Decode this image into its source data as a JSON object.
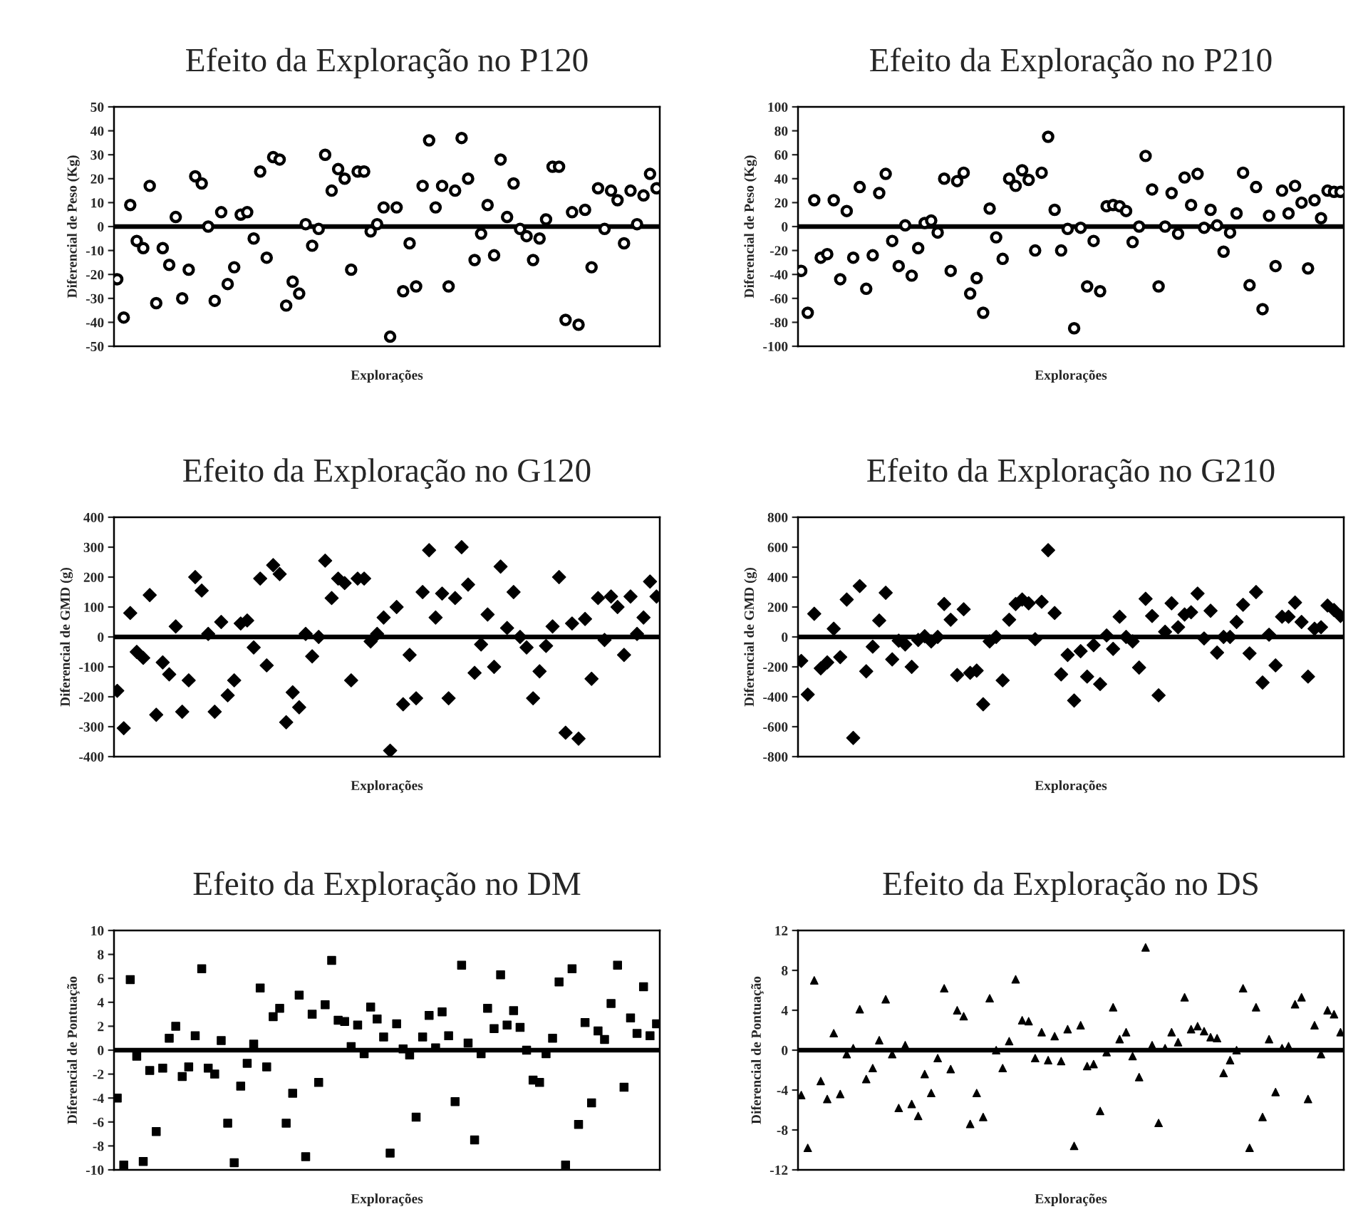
{
  "chart_data": [
    {
      "type": "scatter",
      "title": "Efeito da Exploração no P120",
      "xlabel": "Explorações",
      "ylabel": "Diferencial de Peso (Kg)",
      "marker": "circle",
      "color": "#000000",
      "ylim": [
        -50,
        50
      ],
      "yticks": [
        -50,
        -40,
        -30,
        -20,
        -10,
        0,
        10,
        20,
        30,
        40,
        50
      ],
      "ref_lines": [
        {
          "axis": "y",
          "value": 0,
          "color": "#000000"
        }
      ],
      "grid": false,
      "categories": [
        null,
        null,
        null,
        null,
        null,
        null,
        null,
        null,
        null,
        null,
        null,
        null,
        null,
        null,
        null,
        null,
        null,
        null,
        null,
        null,
        null,
        null,
        null,
        null,
        null,
        null,
        null,
        null,
        null,
        null,
        null,
        null,
        null,
        null,
        null,
        null,
        null,
        null,
        null,
        null,
        null,
        null,
        null,
        null,
        null,
        null,
        null,
        null,
        null,
        null,
        null,
        null,
        null,
        null,
        null,
        null,
        null,
        null,
        null,
        null,
        null,
        null,
        null,
        null,
        null,
        null,
        null,
        null,
        null,
        null,
        null,
        null,
        null,
        null,
        null,
        null,
        null,
        null,
        null,
        null,
        null,
        null,
        null,
        null
      ],
      "values": [
        -22,
        -38,
        9,
        -6,
        -9,
        17,
        -32,
        -9,
        -16,
        4,
        -30,
        -18,
        21,
        18,
        0,
        -31,
        6,
        -24,
        -17,
        5,
        6,
        -5,
        23,
        -13,
        29,
        28,
        -33,
        -23,
        -28,
        1,
        -8,
        -1,
        30,
        15,
        24,
        20,
        -18,
        23,
        23,
        -2,
        1,
        8,
        -46,
        8,
        -27,
        -7,
        -25,
        17,
        36,
        8,
        17,
        -25,
        15,
        37,
        20,
        -14,
        -3,
        9,
        -12,
        28,
        4,
        18,
        -1,
        -4,
        -14,
        -5,
        3,
        25,
        25,
        -39,
        6,
        -41,
        7,
        -17,
        16,
        -1,
        15,
        11,
        -7,
        15,
        1,
        13,
        22,
        16
      ]
    },
    {
      "type": "scatter",
      "title": "Efeito da Exploração no P210",
      "xlabel": "Explorações",
      "ylabel": "Diferencial de Peso (Kg)",
      "marker": "circle",
      "color": "#000000",
      "ylim": [
        -100,
        100
      ],
      "yticks": [
        -100,
        -80,
        -60,
        -40,
        -20,
        0,
        20,
        40,
        60,
        80,
        100
      ],
      "ref_lines": [
        {
          "axis": "y",
          "value": 0,
          "color": "#000000"
        }
      ],
      "grid": false,
      "categories": [
        null,
        null,
        null,
        null,
        null,
        null,
        null,
        null,
        null,
        null,
        null,
        null,
        null,
        null,
        null,
        null,
        null,
        null,
        null,
        null,
        null,
        null,
        null,
        null,
        null,
        null,
        null,
        null,
        null,
        null,
        null,
        null,
        null,
        null,
        null,
        null,
        null,
        null,
        null,
        null,
        null,
        null,
        null,
        null,
        null,
        null,
        null,
        null,
        null,
        null,
        null,
        null,
        null,
        null,
        null,
        null,
        null,
        null,
        null,
        null,
        null,
        null,
        null,
        null,
        null,
        null,
        null,
        null,
        null,
        null,
        null,
        null,
        null,
        null,
        null,
        null,
        null,
        null,
        null,
        null,
        null,
        null,
        null,
        null
      ],
      "values": [
        -37,
        -72,
        22,
        -26,
        -23,
        22,
        -44,
        13,
        -26,
        33,
        -52,
        -24,
        28,
        44,
        -12,
        -33,
        1,
        -41,
        -18,
        3,
        5,
        -5,
        40,
        -37,
        38,
        45,
        -56,
        -43,
        -72,
        15,
        -9,
        -27,
        40,
        34,
        47,
        39,
        -20,
        45,
        75,
        14,
        -20,
        -2,
        -85,
        -1,
        -50,
        -12,
        -54,
        17,
        18,
        17,
        13,
        -13,
        0,
        59,
        31,
        -50,
        0,
        28,
        -6,
        41,
        18,
        44,
        -1,
        14,
        1,
        -21,
        -5,
        11,
        45,
        -49,
        33,
        -69,
        9,
        -33,
        30,
        11,
        34,
        20,
        -35,
        22,
        7,
        30,
        29,
        29
      ]
    },
    {
      "type": "scatter",
      "title": "Efeito da Exploração no G120",
      "xlabel": "Explorações",
      "ylabel": "Diferencial de GMD (g)",
      "marker": "diamond",
      "color": "#000000",
      "ylim": [
        -400,
        400
      ],
      "yticks": [
        -400,
        -300,
        -200,
        -100,
        0,
        100,
        200,
        300,
        400
      ],
      "ref_lines": [
        {
          "axis": "y",
          "value": 0,
          "color": "#000000"
        }
      ],
      "grid": false,
      "categories": [
        null,
        null,
        null,
        null,
        null,
        null,
        null,
        null,
        null,
        null,
        null,
        null,
        null,
        null,
        null,
        null,
        null,
        null,
        null,
        null,
        null,
        null,
        null,
        null,
        null,
        null,
        null,
        null,
        null,
        null,
        null,
        null,
        null,
        null,
        null,
        null,
        null,
        null,
        null,
        null,
        null,
        null,
        null,
        null,
        null,
        null,
        null,
        null,
        null,
        null,
        null,
        null,
        null,
        null,
        null,
        null,
        null,
        null,
        null,
        null,
        null,
        null,
        null,
        null,
        null,
        null,
        null,
        null,
        null,
        null,
        null,
        null,
        null,
        null,
        null,
        null,
        null,
        null,
        null,
        null,
        null,
        null,
        null,
        null
      ],
      "values": [
        -180,
        -305,
        80,
        -50,
        -70,
        140,
        -260,
        -85,
        -125,
        35,
        -250,
        -145,
        200,
        155,
        10,
        -250,
        50,
        -195,
        -145,
        45,
        55,
        -35,
        195,
        -95,
        240,
        210,
        -285,
        -185,
        -235,
        10,
        -65,
        0,
        255,
        130,
        195,
        180,
        -145,
        195,
        195,
        -15,
        10,
        65,
        -380,
        100,
        -225,
        -60,
        -205,
        150,
        290,
        65,
        145,
        -205,
        130,
        300,
        175,
        -120,
        -25,
        75,
        -100,
        235,
        30,
        150,
        0,
        -35,
        -205,
        -115,
        -30,
        35,
        200,
        -320,
        45,
        -340,
        60,
        -140,
        130,
        -10,
        135,
        100,
        -60,
        135,
        10,
        65,
        185,
        135
      ]
    },
    {
      "type": "scatter",
      "title": "Efeito da Exploração no G210",
      "xlabel": "Explorações",
      "ylabel": "Diferencial de GMD (g)",
      "marker": "diamond",
      "color": "#000000",
      "ylim": [
        -800,
        800
      ],
      "yticks": [
        -800,
        -600,
        -400,
        -200,
        0,
        200,
        400,
        600,
        800
      ],
      "ref_lines": [
        {
          "axis": "y",
          "value": 0,
          "color": "#000000"
        }
      ],
      "grid": false,
      "categories": [
        null,
        null,
        null,
        null,
        null,
        null,
        null,
        null,
        null,
        null,
        null,
        null,
        null,
        null,
        null,
        null,
        null,
        null,
        null,
        null,
        null,
        null,
        null,
        null,
        null,
        null,
        null,
        null,
        null,
        null,
        null,
        null,
        null,
        null,
        null,
        null,
        null,
        null,
        null,
        null,
        null,
        null,
        null,
        null,
        null,
        null,
        null,
        null,
        null,
        null,
        null,
        null,
        null,
        null,
        null,
        null,
        null,
        null,
        null,
        null,
        null,
        null,
        null,
        null,
        null,
        null,
        null,
        null,
        null,
        null,
        null,
        null,
        null,
        null,
        null,
        null,
        null,
        null,
        null,
        null,
        null,
        null,
        null,
        null
      ],
      "values": [
        -160,
        -385,
        155,
        -210,
        -170,
        55,
        -135,
        250,
        -675,
        340,
        -230,
        -65,
        110,
        295,
        -150,
        -25,
        -50,
        -200,
        -20,
        5,
        -30,
        0,
        220,
        115,
        -255,
        185,
        -240,
        -225,
        -450,
        -30,
        0,
        -290,
        115,
        220,
        250,
        225,
        -15,
        235,
        580,
        160,
        -250,
        -120,
        -425,
        -95,
        -265,
        -55,
        -315,
        10,
        -80,
        135,
        0,
        -30,
        -205,
        255,
        140,
        -390,
        35,
        225,
        65,
        150,
        165,
        290,
        -10,
        175,
        -105,
        0,
        0,
        100,
        215,
        -110,
        300,
        -305,
        15,
        -190,
        135,
        135,
        230,
        100,
        -265,
        55,
        65,
        210,
        180,
        140
      ]
    },
    {
      "type": "scatter",
      "title": "Efeito da Exploração no DM",
      "xlabel": "Explorações",
      "ylabel": "Diferencial de Pontuação",
      "marker": "square",
      "color": "#000000",
      "ylim": [
        -10,
        10
      ],
      "yticks": [
        -10,
        -8,
        -6,
        -4,
        -2,
        0,
        2,
        4,
        6,
        8,
        10
      ],
      "ref_lines": [
        {
          "axis": "y",
          "value": 0,
          "color": "#000000"
        }
      ],
      "grid": false,
      "categories": [
        null,
        null,
        null,
        null,
        null,
        null,
        null,
        null,
        null,
        null,
        null,
        null,
        null,
        null,
        null,
        null,
        null,
        null,
        null,
        null,
        null,
        null,
        null,
        null,
        null,
        null,
        null,
        null,
        null,
        null,
        null,
        null,
        null,
        null,
        null,
        null,
        null,
        null,
        null,
        null,
        null,
        null,
        null,
        null,
        null,
        null,
        null,
        null,
        null,
        null,
        null,
        null,
        null,
        null,
        null,
        null,
        null,
        null,
        null,
        null,
        null,
        null,
        null,
        null,
        null,
        null,
        null,
        null,
        null,
        null,
        null,
        null,
        null,
        null,
        null,
        null,
        null,
        null,
        null,
        null,
        null,
        null,
        null,
        null
      ],
      "values": [
        -4,
        -9.6,
        5.9,
        -0.5,
        -9.3,
        -1.7,
        -6.8,
        -1.5,
        1,
        2,
        -2.2,
        -1.4,
        1.2,
        6.8,
        -1.5,
        -2,
        0.8,
        -6.1,
        -9.4,
        -3,
        -1.1,
        0.5,
        5.2,
        -1.4,
        2.8,
        3.5,
        -6.1,
        -3.6,
        4.6,
        -8.9,
        3,
        -2.7,
        3.8,
        7.5,
        2.5,
        2.4,
        0.3,
        2.1,
        -0.3,
        3.6,
        2.6,
        1.1,
        -8.6,
        2.2,
        0.1,
        -0.4,
        -5.6,
        1.1,
        2.9,
        0.2,
        3.2,
        1.2,
        -4.3,
        7.1,
        0.6,
        -7.5,
        -0.3,
        3.5,
        1.8,
        6.3,
        2.1,
        3.3,
        1.9,
        0,
        -2.5,
        -2.7,
        -0.3,
        1,
        5.7,
        -9.6,
        6.8,
        -6.2,
        2.3,
        -4.4,
        1.6,
        0.9,
        3.9,
        7.1,
        -3.1,
        2.7,
        1.4,
        5.3,
        1.2,
        2.2
      ]
    },
    {
      "type": "scatter",
      "title": "Efeito da Exploração no DS",
      "xlabel": "Explorações",
      "ylabel": "Diferencial de Pontuação",
      "marker": "triangle",
      "color": "#000000",
      "ylim": [
        -12,
        12
      ],
      "yticks": [
        -12,
        -8,
        -4,
        0,
        4,
        8,
        12
      ],
      "ref_lines": [
        {
          "axis": "y",
          "value": 0,
          "color": "#000000"
        }
      ],
      "grid": false,
      "categories": [
        null,
        null,
        null,
        null,
        null,
        null,
        null,
        null,
        null,
        null,
        null,
        null,
        null,
        null,
        null,
        null,
        null,
        null,
        null,
        null,
        null,
        null,
        null,
        null,
        null,
        null,
        null,
        null,
        null,
        null,
        null,
        null,
        null,
        null,
        null,
        null,
        null,
        null,
        null,
        null,
        null,
        null,
        null,
        null,
        null,
        null,
        null,
        null,
        null,
        null,
        null,
        null,
        null,
        null,
        null,
        null,
        null,
        null,
        null,
        null,
        null,
        null,
        null,
        null,
        null,
        null,
        null,
        null,
        null,
        null,
        null,
        null,
        null,
        null,
        null,
        null,
        null,
        null,
        null,
        null,
        null,
        null,
        null,
        null
      ],
      "values": [
        -4.5,
        -9.8,
        7,
        -3.1,
        -4.9,
        1.7,
        -4.4,
        -0.4,
        0.2,
        4.1,
        -2.9,
        -1.8,
        1,
        5.1,
        -0.4,
        -5.8,
        0.5,
        -5.4,
        -6.6,
        -2.4,
        -4.3,
        -0.8,
        6.2,
        -1.9,
        4,
        3.4,
        -7.4,
        -4.3,
        -6.7,
        5.2,
        0,
        -1.8,
        0.9,
        7.1,
        3,
        2.9,
        -0.8,
        1.8,
        -1,
        1.4,
        -1.1,
        2.1,
        -9.6,
        2.5,
        -1.6,
        -1.4,
        -6.1,
        -0.2,
        4.3,
        1.1,
        1.8,
        -0.6,
        -2.7,
        10.3,
        0.5,
        -7.3,
        0.2,
        1.8,
        0.8,
        5.3,
        2.1,
        2.4,
        1.9,
        1.3,
        1.2,
        -2.3,
        -1,
        0,
        6.2,
        -9.8,
        4.3,
        -6.7,
        1.1,
        -4.2,
        0.2,
        0.4,
        4.6,
        5.3,
        -4.9,
        2.5,
        -0.4,
        4,
        3.6,
        1.8
      ]
    }
  ]
}
